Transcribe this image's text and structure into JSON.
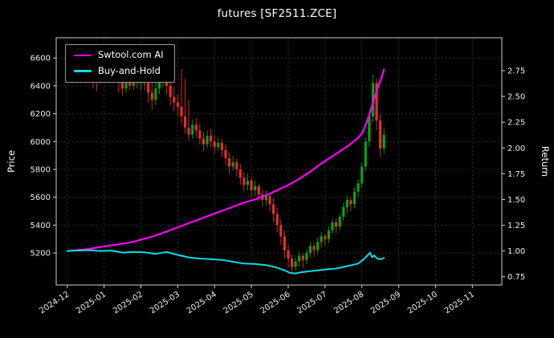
{
  "window": {
    "title": "futures [SF2511.ZCE]"
  },
  "chart_data": {
    "type": "candlestick+line",
    "title": "futures [SF2511.ZCE]",
    "background": "#000000",
    "grid": true,
    "legend_position": "top-left",
    "left_axis": {
      "label": "Price",
      "ticks": [
        5200,
        5400,
        5600,
        5800,
        6000,
        6200,
        6400,
        6600
      ],
      "min": 4970,
      "max": 6745
    },
    "right_axis": {
      "label": "Return",
      "ticks": [
        "0.75",
        "1.00",
        "1.25",
        "1.50",
        "1.75",
        "2.00",
        "2.25",
        "2.50",
        "2.75"
      ],
      "min": 0.67,
      "max": 3.07
    },
    "x_axis": {
      "tick_labels": [
        "2024-12",
        "2025-01",
        "2025-02",
        "2025-03",
        "2025-04",
        "2025-05",
        "2025-06",
        "2025-07",
        "2025-08",
        "2025-09",
        "2025-10",
        "2025-11"
      ],
      "tick_positions": [
        0,
        1,
        2,
        3,
        4,
        5,
        6,
        7,
        8,
        9,
        10,
        11
      ],
      "min": -0.3,
      "max": 11.8
    },
    "legend": [
      {
        "label": "Swtool.com AI",
        "color": "#ff00ff"
      },
      {
        "label": "Buy-and-Hold",
        "color": "#00e0e0"
      }
    ],
    "candles": {
      "up_color": "#0ca30c",
      "down_color": "#e62e2e",
      "ohlc": [
        [
          0.0,
          6480,
          6520,
          6440,
          6500
        ],
        [
          0.1,
          6500,
          6560,
          6480,
          6530
        ],
        [
          0.2,
          6530,
          6550,
          6460,
          6490
        ],
        [
          0.3,
          6490,
          6580,
          6470,
          6550
        ],
        [
          0.4,
          6550,
          6590,
          6490,
          6520
        ],
        [
          0.5,
          6520,
          6600,
          6500,
          6560
        ],
        [
          0.6,
          6560,
          6580,
          6510,
          6540
        ],
        [
          0.7,
          6540,
          6570,
          6380,
          6500
        ],
        [
          0.8,
          6500,
          6530,
          6360,
          6460
        ],
        [
          0.9,
          6460,
          6540,
          6420,
          6510
        ],
        [
          1.0,
          6510,
          6550,
          6440,
          6480
        ],
        [
          1.1,
          6480,
          6570,
          6450,
          6540
        ],
        [
          1.2,
          6540,
          6600,
          6500,
          6560
        ],
        [
          1.3,
          6560,
          6590,
          6470,
          6500
        ],
        [
          1.4,
          6500,
          6520,
          6350,
          6430
        ],
        [
          1.5,
          6430,
          6460,
          6330,
          6380
        ],
        [
          1.6,
          6380,
          6470,
          6350,
          6440
        ],
        [
          1.7,
          6440,
          6480,
          6370,
          6400
        ],
        [
          1.8,
          6400,
          6490,
          6370,
          6460
        ],
        [
          1.9,
          6460,
          6500,
          6380,
          6420
        ],
        [
          2.0,
          6420,
          6510,
          6370,
          6480
        ],
        [
          2.1,
          6480,
          6530,
          6370,
          6420
        ],
        [
          2.2,
          6420,
          6460,
          6280,
          6350
        ],
        [
          2.3,
          6350,
          6420,
          6230,
          6300
        ],
        [
          2.4,
          6300,
          6430,
          6260,
          6380
        ],
        [
          2.5,
          6380,
          6500,
          6340,
          6450
        ],
        [
          2.6,
          6450,
          6540,
          6390,
          6480
        ],
        [
          2.7,
          6480,
          6510,
          6340,
          6400
        ],
        [
          2.8,
          6400,
          6440,
          6260,
          6320
        ],
        [
          2.9,
          6320,
          6390,
          6220,
          6280
        ],
        [
          3.0,
          6280,
          6340,
          6180,
          6250
        ],
        [
          3.1,
          6250,
          6520,
          6130,
          6180
        ],
        [
          3.2,
          6180,
          6450,
          6060,
          6100
        ],
        [
          3.3,
          6100,
          6300,
          6010,
          6050
        ],
        [
          3.4,
          6050,
          6160,
          6020,
          6120
        ],
        [
          3.5,
          6120,
          6170,
          6030,
          6080
        ],
        [
          3.6,
          6080,
          6130,
          5980,
          6020
        ],
        [
          3.7,
          6020,
          6070,
          5930,
          5980
        ],
        [
          3.8,
          5980,
          6080,
          5950,
          6040
        ],
        [
          3.9,
          6040,
          6090,
          5960,
          6000
        ],
        [
          4.0,
          6000,
          6040,
          5910,
          5960
        ],
        [
          4.1,
          5960,
          6030,
          5930,
          5990
        ],
        [
          4.2,
          5990,
          6020,
          5890,
          5940
        ],
        [
          4.3,
          5940,
          5980,
          5830,
          5880
        ],
        [
          4.4,
          5880,
          5920,
          5770,
          5820
        ],
        [
          4.5,
          5820,
          5900,
          5790,
          5850
        ],
        [
          4.6,
          5850,
          5880,
          5750,
          5800
        ],
        [
          4.7,
          5800,
          5840,
          5690,
          5740
        ],
        [
          4.8,
          5740,
          5780,
          5640,
          5690
        ],
        [
          4.9,
          5690,
          5770,
          5650,
          5720
        ],
        [
          5.0,
          5720,
          5750,
          5600,
          5650
        ],
        [
          5.1,
          5650,
          5720,
          5610,
          5680
        ],
        [
          5.2,
          5680,
          5700,
          5570,
          5620
        ],
        [
          5.3,
          5620,
          5660,
          5530,
          5580
        ],
        [
          5.4,
          5580,
          5650,
          5540,
          5610
        ],
        [
          5.5,
          5610,
          5630,
          5500,
          5550
        ],
        [
          5.6,
          5550,
          5590,
          5420,
          5480
        ],
        [
          5.7,
          5480,
          5520,
          5350,
          5400
        ],
        [
          5.8,
          5400,
          5440,
          5260,
          5320
        ],
        [
          5.9,
          5320,
          5360,
          5160,
          5220
        ],
        [
          6.0,
          5220,
          5260,
          5100,
          5160
        ],
        [
          6.1,
          5160,
          5190,
          5060,
          5100
        ],
        [
          6.2,
          5100,
          5170,
          5070,
          5140
        ],
        [
          6.3,
          5140,
          5210,
          5100,
          5180
        ],
        [
          6.4,
          5180,
          5200,
          5090,
          5150
        ],
        [
          6.5,
          5150,
          5230,
          5120,
          5200
        ],
        [
          6.6,
          5200,
          5280,
          5170,
          5250
        ],
        [
          6.7,
          5250,
          5270,
          5170,
          5220
        ],
        [
          6.8,
          5220,
          5310,
          5190,
          5280
        ],
        [
          6.9,
          5280,
          5350,
          5240,
          5320
        ],
        [
          7.0,
          5320,
          5340,
          5250,
          5300
        ],
        [
          7.1,
          5300,
          5390,
          5270,
          5360
        ],
        [
          7.2,
          5360,
          5450,
          5330,
          5420
        ],
        [
          7.3,
          5420,
          5450,
          5340,
          5390
        ],
        [
          7.4,
          5390,
          5480,
          5360,
          5460
        ],
        [
          7.5,
          5460,
          5560,
          5430,
          5530
        ],
        [
          7.6,
          5530,
          5610,
          5490,
          5580
        ],
        [
          7.7,
          5580,
          5600,
          5500,
          5550
        ],
        [
          7.8,
          5550,
          5670,
          5520,
          5640
        ],
        [
          7.9,
          5640,
          5730,
          5600,
          5700
        ],
        [
          8.0,
          5700,
          5850,
          5670,
          5820
        ],
        [
          8.1,
          5820,
          6030,
          5790,
          6000
        ],
        [
          8.2,
          6000,
          6220,
          5960,
          6180
        ],
        [
          8.3,
          6180,
          6480,
          6140,
          6420
        ],
        [
          8.4,
          6420,
          6450,
          6080,
          6150
        ],
        [
          8.5,
          6150,
          6200,
          5890,
          5950
        ],
        [
          8.6,
          5950,
          6100,
          5910,
          6050
        ]
      ]
    },
    "series": [
      {
        "name": "Swtool.com AI",
        "color": "#ff00ff",
        "axis": "right",
        "width": 2.2,
        "points": [
          [
            0,
            1.0
          ],
          [
            0.3,
            1.01
          ],
          [
            0.6,
            1.02
          ],
          [
            0.9,
            1.04
          ],
          [
            1.2,
            1.055
          ],
          [
            1.5,
            1.07
          ],
          [
            1.8,
            1.09
          ],
          [
            2.1,
            1.12
          ],
          [
            2.4,
            1.15
          ],
          [
            2.7,
            1.19
          ],
          [
            3.0,
            1.23
          ],
          [
            3.3,
            1.27
          ],
          [
            3.6,
            1.31
          ],
          [
            3.9,
            1.35
          ],
          [
            4.2,
            1.39
          ],
          [
            4.5,
            1.43
          ],
          [
            4.8,
            1.47
          ],
          [
            5.1,
            1.5
          ],
          [
            5.4,
            1.54
          ],
          [
            5.7,
            1.59
          ],
          [
            6.0,
            1.64
          ],
          [
            6.3,
            1.7
          ],
          [
            6.6,
            1.77
          ],
          [
            6.9,
            1.85
          ],
          [
            7.2,
            1.92
          ],
          [
            7.5,
            1.99
          ],
          [
            7.7,
            2.04
          ],
          [
            7.9,
            2.1
          ],
          [
            8.0,
            2.14
          ],
          [
            8.1,
            2.22
          ],
          [
            8.2,
            2.32
          ],
          [
            8.3,
            2.44
          ],
          [
            8.35,
            2.5
          ],
          [
            8.45,
            2.6
          ],
          [
            8.55,
            2.7
          ],
          [
            8.6,
            2.76
          ]
        ]
      },
      {
        "name": "Buy-and-Hold",
        "color": "#00e0e0",
        "axis": "right",
        "width": 2.0,
        "points": [
          [
            0,
            1.0
          ],
          [
            0.3,
            1.005
          ],
          [
            0.6,
            1.008
          ],
          [
            0.9,
            1.0
          ],
          [
            1.2,
            1.004
          ],
          [
            1.5,
            0.985
          ],
          [
            1.8,
            0.992
          ],
          [
            2.1,
            0.988
          ],
          [
            2.4,
            0.972
          ],
          [
            2.7,
            0.99
          ],
          [
            3.0,
            0.962
          ],
          [
            3.3,
            0.938
          ],
          [
            3.6,
            0.926
          ],
          [
            3.9,
            0.922
          ],
          [
            4.2,
            0.914
          ],
          [
            4.5,
            0.896
          ],
          [
            4.8,
            0.878
          ],
          [
            5.1,
            0.874
          ],
          [
            5.4,
            0.863
          ],
          [
            5.7,
            0.838
          ],
          [
            5.9,
            0.812
          ],
          [
            6.05,
            0.788
          ],
          [
            6.2,
            0.782
          ],
          [
            6.35,
            0.794
          ],
          [
            6.5,
            0.8
          ],
          [
            6.7,
            0.808
          ],
          [
            6.9,
            0.816
          ],
          [
            7.1,
            0.824
          ],
          [
            7.3,
            0.83
          ],
          [
            7.5,
            0.845
          ],
          [
            7.7,
            0.861
          ],
          [
            7.9,
            0.878
          ],
          [
            8.05,
            0.92
          ],
          [
            8.15,
            0.956
          ],
          [
            8.22,
            0.985
          ],
          [
            8.28,
            0.94
          ],
          [
            8.33,
            0.957
          ],
          [
            8.42,
            0.926
          ],
          [
            8.5,
            0.92
          ],
          [
            8.6,
            0.932
          ]
        ]
      }
    ]
  }
}
